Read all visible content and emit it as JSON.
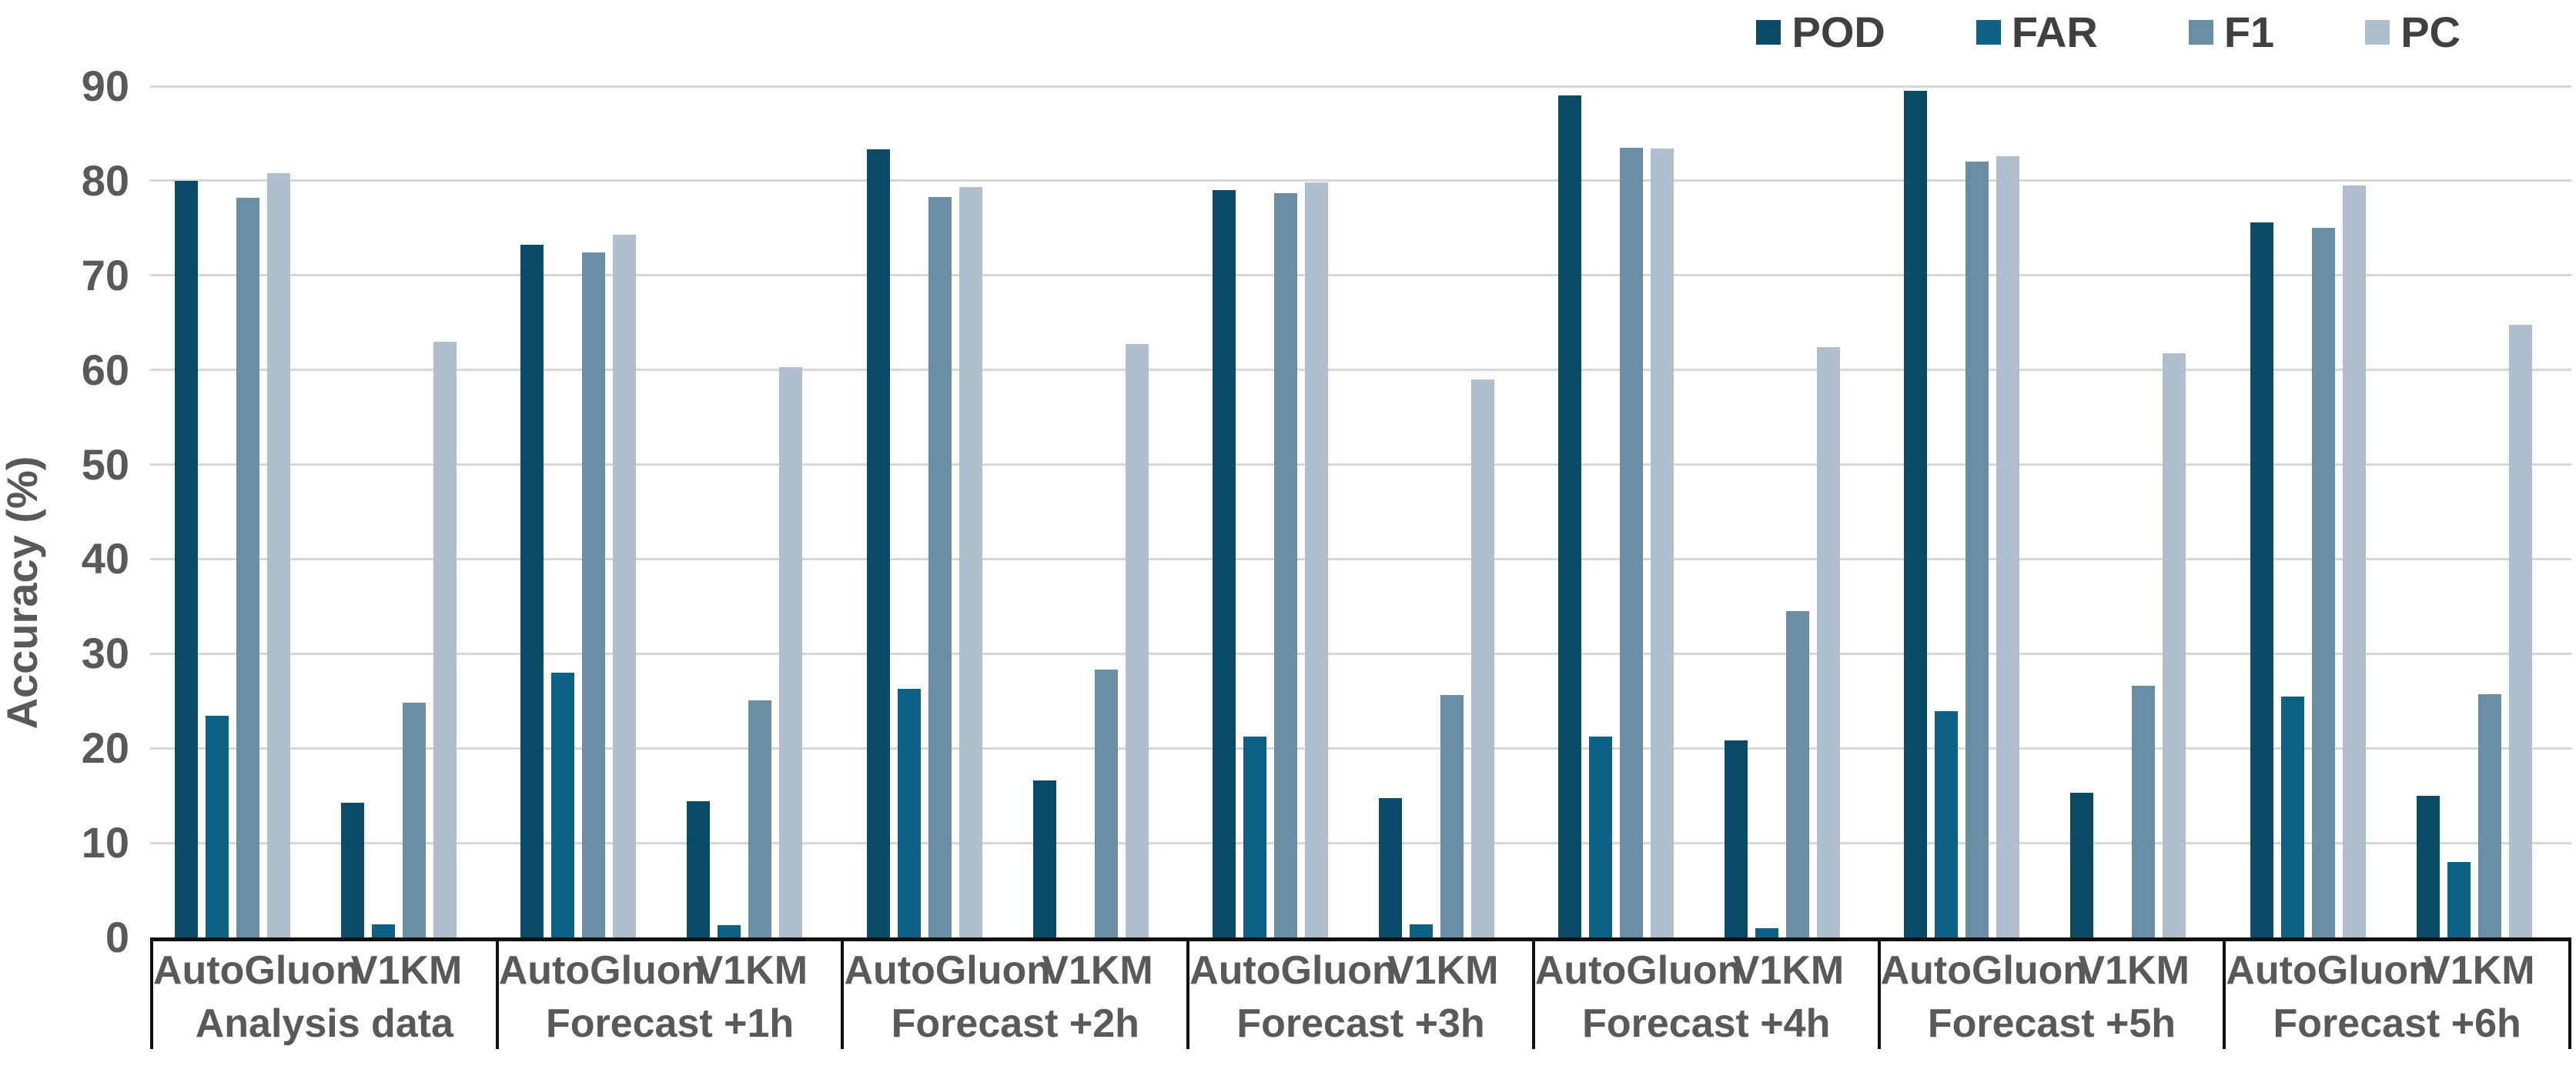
{
  "chart_data": {
    "type": "bar",
    "title": "",
    "xlabel": "",
    "ylabel": "Accuracy (%)",
    "ylim": [
      0,
      90
    ],
    "y_ticks": [
      0,
      10,
      20,
      30,
      40,
      50,
      60,
      70,
      80,
      90
    ],
    "grid": true,
    "legend_position": "top-right",
    "series": [
      {
        "name": "POD",
        "color": "#0b4a68"
      },
      {
        "name": "FAR",
        "color": "#0d6185"
      },
      {
        "name": "F1",
        "color": "#6a8fa5"
      },
      {
        "name": "PC",
        "color": "#b0bfce"
      }
    ],
    "subgroup_labels": [
      "AutoGluon",
      "V1KM"
    ],
    "groups": [
      {
        "label": "Analysis data",
        "subgroups": [
          {
            "label": "AutoGluon",
            "values": [
              80.0,
              23.4,
              78.2,
              80.8
            ]
          },
          {
            "label": "V1KM",
            "values": [
              14.2,
              1.4,
              24.8,
              63.0
            ]
          }
        ]
      },
      {
        "label": "Forecast +1h",
        "subgroups": [
          {
            "label": "AutoGluon",
            "values": [
              73.2,
              28.0,
              72.4,
              74.3
            ]
          },
          {
            "label": "V1KM",
            "values": [
              14.4,
              1.3,
              25.1,
              60.3
            ]
          }
        ]
      },
      {
        "label": "Forecast +2h",
        "subgroups": [
          {
            "label": "AutoGluon",
            "values": [
              83.3,
              26.3,
              78.3,
              79.3
            ]
          },
          {
            "label": "V1KM",
            "values": [
              16.6,
              0.0,
              28.3,
              62.7
            ]
          }
        ]
      },
      {
        "label": "Forecast +3h",
        "subgroups": [
          {
            "label": "AutoGluon",
            "values": [
              79.0,
              21.2,
              78.7,
              79.8
            ]
          },
          {
            "label": "V1KM",
            "values": [
              14.7,
              1.4,
              25.6,
              59.0
            ]
          }
        ]
      },
      {
        "label": "Forecast +4h",
        "subgroups": [
          {
            "label": "AutoGluon",
            "values": [
              89.0,
              21.2,
              83.5,
              83.4
            ]
          },
          {
            "label": "V1KM",
            "values": [
              20.8,
              1.0,
              34.5,
              62.4
            ]
          }
        ]
      },
      {
        "label": "Forecast +5h",
        "subgroups": [
          {
            "label": "AutoGluon",
            "values": [
              89.5,
              23.9,
              82.0,
              82.6
            ]
          },
          {
            "label": "V1KM",
            "values": [
              15.3,
              0.0,
              26.6,
              61.8
            ]
          }
        ]
      },
      {
        "label": "Forecast +6h",
        "subgroups": [
          {
            "label": "AutoGluon",
            "values": [
              75.6,
              25.5,
              75.0,
              79.5
            ]
          },
          {
            "label": "V1KM",
            "values": [
              15.0,
              8.0,
              25.7,
              64.8
            ]
          }
        ]
      }
    ]
  }
}
